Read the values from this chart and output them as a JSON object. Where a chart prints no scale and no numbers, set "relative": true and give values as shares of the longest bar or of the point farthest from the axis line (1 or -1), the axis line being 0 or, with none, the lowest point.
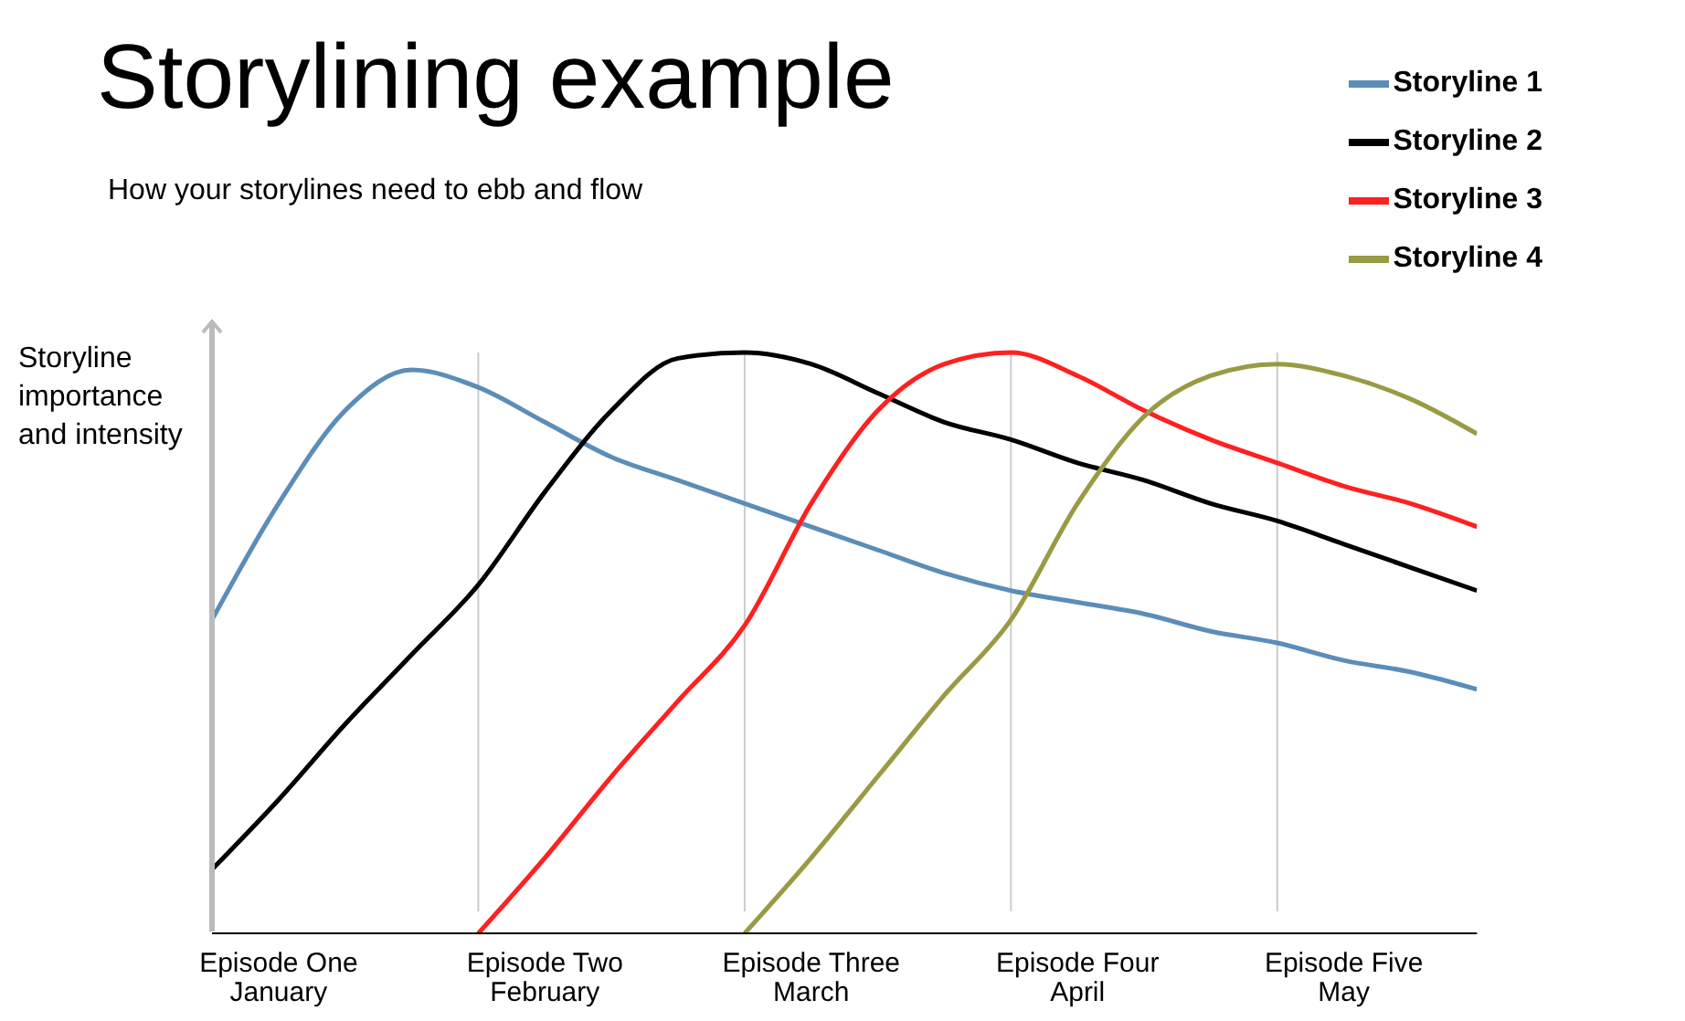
{
  "chart_data": {
    "type": "line",
    "relative": true,
    "title": "Storylining example",
    "subtitle": "How your storylines need to ebb and flow",
    "ylabel": "Storyline importance and intensity",
    "categories": [
      null,
      "Episode One\nJanuary",
      null,
      null,
      null,
      "Episode Two\nFebruary",
      null,
      null,
      null,
      "Episode Three\nMarch",
      null,
      null,
      null,
      "Episode Four\nApril",
      null,
      null,
      null,
      "Episode Five\nMay",
      null,
      null
    ],
    "grid": "x",
    "legend": "top right",
    "marker": "none",
    "line_style": "solid",
    "series": [
      {
        "name": "Storyline 1",
        "color": "#5b8db8",
        "values": [
          0.54,
          0.74,
          0.9,
          0.97,
          0.94,
          0.88,
          0.82,
          0.78,
          0.74,
          0.7,
          0.66,
          0.62,
          0.59,
          0.57,
          0.55,
          0.52,
          0.5,
          0.47,
          0.45,
          0.42
        ]
      },
      {
        "name": "Storyline 2",
        "color": "#000000",
        "values": [
          0.11,
          0.23,
          0.36,
          0.48,
          0.6,
          0.76,
          0.9,
          0.99,
          1,
          0.98,
          0.93,
          0.88,
          0.85,
          0.81,
          0.78,
          0.74,
          0.71,
          0.67,
          0.63,
          0.59
        ]
      },
      {
        "name": "Storyline 3",
        "color": "#ff2020",
        "values": [
          null,
          null,
          null,
          null,
          0,
          0.13,
          0.27,
          0.4,
          0.53,
          0.74,
          0.9,
          0.98,
          1,
          0.96,
          0.9,
          0.85,
          0.81,
          0.77,
          0.74,
          0.7
        ]
      },
      {
        "name": "Storyline 4",
        "color": "#999a44",
        "values": [
          null,
          null,
          null,
          null,
          null,
          null,
          null,
          null,
          0,
          0.13,
          0.27,
          0.41,
          0.54,
          0.74,
          0.89,
          0.96,
          0.98,
          0.96,
          0.92,
          0.86
        ]
      }
    ]
  }
}
